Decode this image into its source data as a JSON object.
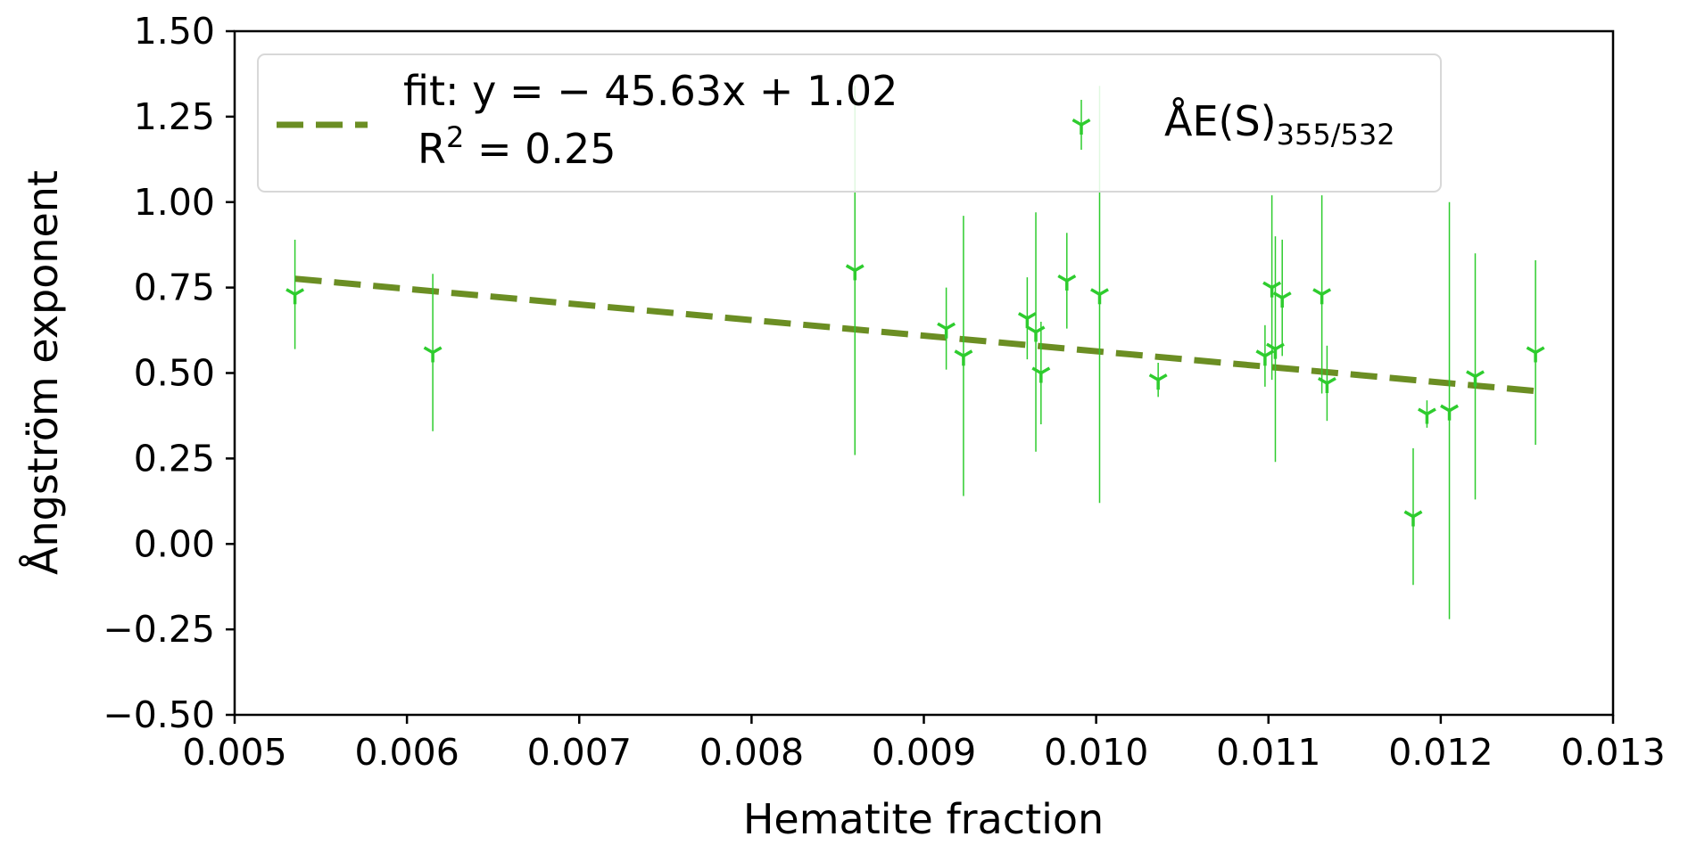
{
  "chart_data": {
    "type": "scatter",
    "xlabel": "Hematite fraction",
    "ylabel": "Ångström exponent",
    "xlim": [
      0.005,
      0.013
    ],
    "ylim": [
      -0.5,
      1.5
    ],
    "xticks": [
      0.005,
      0.006,
      0.007,
      0.008,
      0.009,
      0.01,
      0.011,
      0.012,
      0.013
    ],
    "xtick_labels": [
      "0.005",
      "0.006",
      "0.007",
      "0.008",
      "0.009",
      "0.010",
      "0.011",
      "0.012",
      "0.013"
    ],
    "yticks": [
      -0.5,
      -0.25,
      0.0,
      0.25,
      0.5,
      0.75,
      1.0,
      1.25,
      1.5
    ],
    "ytick_labels": [
      "−0.50",
      "−0.25",
      "0.00",
      "0.25",
      "0.50",
      "0.75",
      "1.00",
      "1.25",
      "1.50"
    ],
    "grid": false,
    "legend_position": "top",
    "legend": {
      "fit_line1": "fit: y = − 45.63x + 1.02",
      "fit_line2_prefix": "R",
      "fit_line2_sup": "2",
      "fit_line2_suffix": " = 0.25",
      "series_main": "ÅE(S)",
      "series_sub": "355/532"
    },
    "series": [
      {
        "name": "ÅE(S)355/532",
        "color": "#2ecc2e",
        "marker": "tri-down",
        "points": [
          {
            "x": 0.00535,
            "y": 0.73,
            "err": 0.16
          },
          {
            "x": 0.00615,
            "y": 0.56,
            "err": 0.23
          },
          {
            "x": 0.0086,
            "y": 0.8,
            "err": 0.54
          },
          {
            "x": 0.00913,
            "y": 0.63,
            "err": 0.12
          },
          {
            "x": 0.00923,
            "y": 0.55,
            "err": 0.41
          },
          {
            "x": 0.0096,
            "y": 0.66,
            "err": 0.12
          },
          {
            "x": 0.00965,
            "y": 0.62,
            "err": 0.35
          },
          {
            "x": 0.00968,
            "y": 0.5,
            "err": 0.15
          },
          {
            "x": 0.00983,
            "y": 0.77,
            "err": 0.14
          },
          {
            "x": 0.01002,
            "y": 0.73,
            "err": 0.61
          },
          {
            "x": 0.01036,
            "y": 0.48,
            "err": 0.05
          },
          {
            "x": 0.01098,
            "y": 0.55,
            "err": 0.09
          },
          {
            "x": 0.01102,
            "y": 0.75,
            "err": 0.27
          },
          {
            "x": 0.01104,
            "y": 0.57,
            "err": 0.33
          },
          {
            "x": 0.01108,
            "y": 0.72,
            "err": 0.17
          },
          {
            "x": 0.01131,
            "y": 0.73,
            "err": 0.29
          },
          {
            "x": 0.01134,
            "y": 0.47,
            "err": 0.11
          },
          {
            "x": 0.01184,
            "y": 0.08,
            "err": 0.2
          },
          {
            "x": 0.01192,
            "y": 0.38,
            "err": 0.04
          },
          {
            "x": 0.01205,
            "y": 0.39,
            "err": 0.61
          },
          {
            "x": 0.0122,
            "y": 0.49,
            "err": 0.36
          },
          {
            "x": 0.01255,
            "y": 0.56,
            "err": 0.27
          }
        ]
      }
    ],
    "fit": {
      "slope": -45.63,
      "intercept": 1.02,
      "x_range": [
        0.00535,
        0.01255
      ],
      "color": "#6b8e23",
      "style": "dashed"
    }
  }
}
